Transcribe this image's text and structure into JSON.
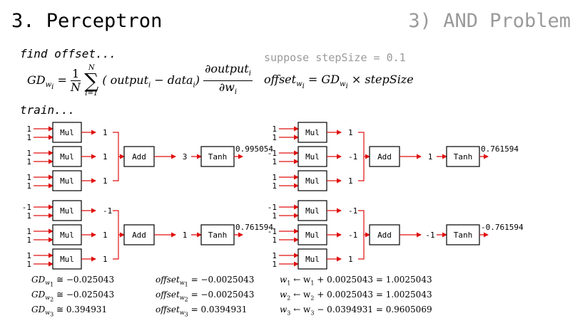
{
  "header": {
    "title": "3. Perceptron",
    "subtitle": "3) AND Problem"
  },
  "labels": {
    "find_offset": "find offset...",
    "train": "train...",
    "step_hint": "suppose stepSize = 0.1"
  },
  "formula": {
    "gd_lhs": "GD",
    "gd_sub": "w",
    "gd_subsub": "i",
    "eq": " = ",
    "one": "1",
    "N": "N",
    "sum_top": "N",
    "sum_bottom": "i=1",
    "term_open": "( output",
    "term_sub1": "i",
    "term_minus": " − data",
    "term_sub2": "i",
    "term_close": ")",
    "deriv_num": "∂output",
    "deriv_num_sub": "i",
    "deriv_den": "∂w",
    "deriv_den_sub": "i",
    "offset_lhs": "offset",
    "offset_rhs": " = GD",
    "offset_times": " × stepSize"
  },
  "diagram": {
    "box_labels": {
      "mul": "Mul",
      "add": "Add",
      "tanh": "Tanh"
    },
    "panels": [
      {
        "inputs": [
          [
            "1",
            "1"
          ],
          [
            "1",
            "1"
          ],
          [
            "1",
            "1"
          ]
        ],
        "muls": [
          "1",
          "1",
          "1"
        ],
        "sum": "3",
        "out": "0.995054"
      },
      {
        "inputs": [
          [
            "1",
            "1"
          ],
          [
            "-1",
            "1"
          ],
          [
            "1",
            "1"
          ]
        ],
        "muls": [
          "1",
          "-1",
          "1"
        ],
        "sum": "1",
        "out": "0.761594"
      },
      {
        "inputs": [
          [
            "-1",
            "1"
          ],
          [
            "1",
            "1"
          ],
          [
            "1",
            "1"
          ]
        ],
        "muls": [
          "-1",
          "1",
          "1"
        ],
        "sum": "1",
        "out": "0.761594"
      },
      {
        "inputs": [
          [
            "-1",
            "1"
          ],
          [
            "-1",
            "1"
          ],
          [
            "1",
            "1"
          ]
        ],
        "muls": [
          "-1",
          "-1",
          "1"
        ],
        "sum": "-1",
        "out": "-0.761594"
      }
    ]
  },
  "results": {
    "gd": [
      {
        "lhs": "GD",
        "sub": "w",
        "subsub": "1",
        "rel": " ≅ −0.025043"
      },
      {
        "lhs": "GD",
        "sub": "w",
        "subsub": "2",
        "rel": " ≅ −0.025043"
      },
      {
        "lhs": "GD",
        "sub": "w",
        "subsub": "3",
        "rel": " ≅ 0.394931"
      }
    ],
    "offsets": [
      {
        "lhs": "offset",
        "sub": "w",
        "subsub": "1",
        "rel": " = −0.0025043"
      },
      {
        "lhs": "offset",
        "sub": "w",
        "subsub": "2",
        "rel": " = −0.0025043"
      },
      {
        "lhs": "offset",
        "sub": "w",
        "subsub": "3",
        "rel": " = 0.0394931"
      }
    ],
    "updates": [
      {
        "w": "w",
        "sub": "1",
        "expr": " ← w",
        "sub2": "1",
        "rest": " + 0.0025043 = 1.0025043"
      },
      {
        "w": "w",
        "sub": "2",
        "expr": " ← w",
        "sub2": "2",
        "rest": " + 0.0025043 = 1.0025043"
      },
      {
        "w": "w",
        "sub": "3",
        "expr": " ← w",
        "sub2": "3",
        "rest": " − 0.0394931 = 0.9605069"
      }
    ]
  }
}
